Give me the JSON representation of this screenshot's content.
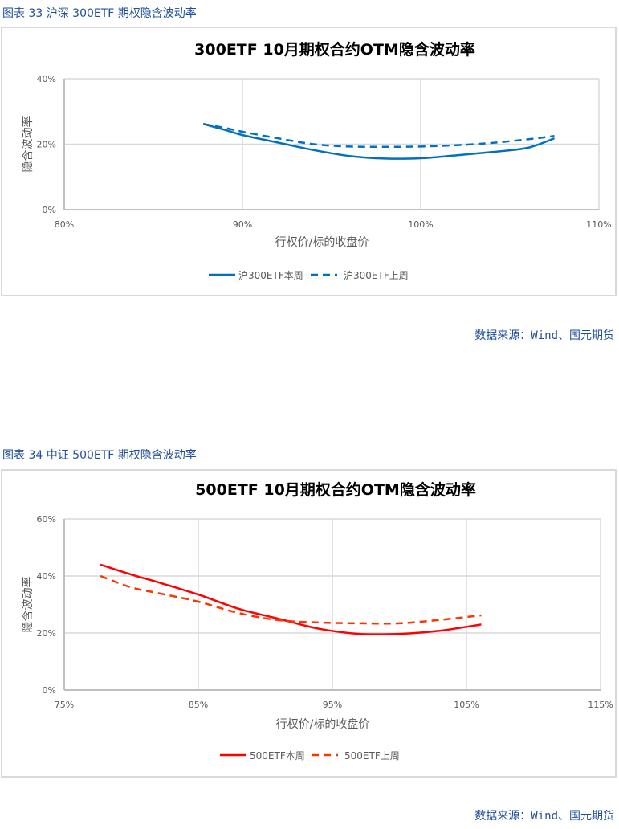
{
  "figures": [
    {
      "caption": "图表 33  沪深 300ETF 期权隐含波动率",
      "source": "数据来源：Wind、国元期货"
    },
    {
      "caption": "图表 34  中证 500ETF 期权隐含波动率",
      "source": "数据来源：Wind、国元期货"
    }
  ],
  "chart_data": [
    {
      "type": "line",
      "title": "300ETF  10月期权合约OTM隐含波动率",
      "xlabel": "行权价/标的收盘价",
      "ylabel": "隐含波动率",
      "xlim": [
        0.8,
        1.1
      ],
      "ylim": [
        0,
        0.4
      ],
      "x_ticks": [
        "80%",
        "90%",
        "100%",
        "110%"
      ],
      "y_ticks": [
        "0%",
        "20%",
        "40%"
      ],
      "grid": true,
      "legend_position": "bottom",
      "color": "#0070c0",
      "series": [
        {
          "name": "沪300ETF本周",
          "style": "solid",
          "x": [
            0.878,
            0.89,
            0.9,
            0.92,
            0.94,
            0.96,
            0.98,
            1.0,
            1.02,
            1.04,
            1.06,
            1.075
          ],
          "y": [
            0.262,
            0.244,
            0.228,
            0.205,
            0.182,
            0.164,
            0.156,
            0.157,
            0.166,
            0.176,
            0.189,
            0.218
          ]
        },
        {
          "name": "沪300ETF上周",
          "style": "dashed",
          "x": [
            0.878,
            0.89,
            0.9,
            0.92,
            0.94,
            0.96,
            0.98,
            1.0,
            1.02,
            1.04,
            1.06,
            1.075
          ],
          "y": [
            0.262,
            0.25,
            0.238,
            0.218,
            0.2,
            0.193,
            0.192,
            0.193,
            0.197,
            0.204,
            0.215,
            0.225
          ]
        }
      ]
    },
    {
      "type": "line",
      "title": "500ETF  10月期权合约OTM隐含波动率",
      "xlabel": "行权价/标的收盘价",
      "ylabel": "隐含波动率",
      "xlim": [
        0.75,
        1.15
      ],
      "ylim": [
        0,
        0.6
      ],
      "x_ticks": [
        "75%",
        "85%",
        "95%",
        "105%",
        "115%"
      ],
      "y_ticks": [
        "0%",
        "20%",
        "40%",
        "60%"
      ],
      "grid": true,
      "legend_position": "bottom",
      "colors": {
        "current": "#ff0000",
        "previous": "#ff3300"
      },
      "series": [
        {
          "name": "500ETF本周",
          "style": "solid",
          "x": [
            0.777,
            0.8,
            0.82,
            0.85,
            0.88,
            0.91,
            0.94,
            0.97,
            1.0,
            1.03,
            1.061
          ],
          "y": [
            0.44,
            0.405,
            0.378,
            0.335,
            0.285,
            0.25,
            0.215,
            0.197,
            0.197,
            0.208,
            0.23
          ]
        },
        {
          "name": "500ETF上周",
          "style": "dashed",
          "x": [
            0.777,
            0.8,
            0.82,
            0.85,
            0.88,
            0.91,
            0.94,
            0.97,
            1.0,
            1.03,
            1.061
          ],
          "y": [
            0.4,
            0.36,
            0.34,
            0.31,
            0.27,
            0.245,
            0.237,
            0.234,
            0.234,
            0.246,
            0.262
          ]
        }
      ]
    }
  ]
}
